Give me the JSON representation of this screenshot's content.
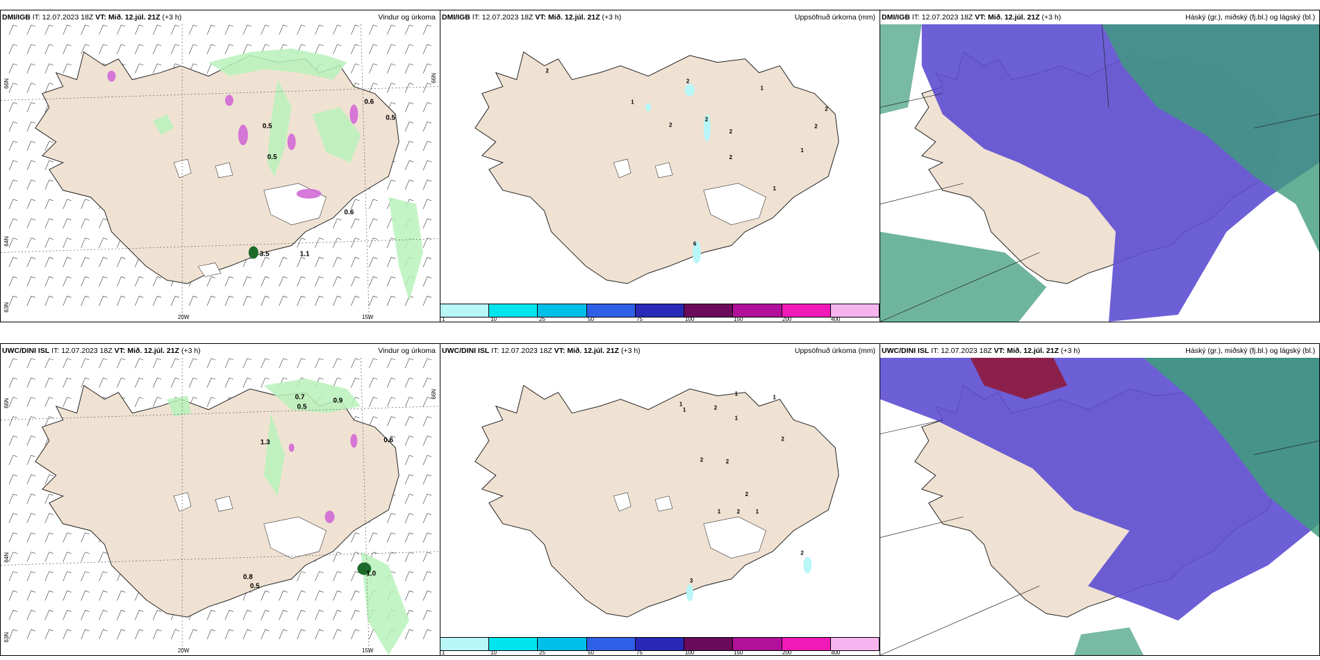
{
  "panels": [
    {
      "model": "DMI/IGB",
      "it_label": "IT:",
      "it": "12.07.2023 18Z",
      "vt_label": "VT:",
      "vt": "Mið. 12.júl. 21Z",
      "lead": "(+3 h)",
      "title": "Vindur og úrkoma"
    },
    {
      "model": "DMI/IGB",
      "it_label": "IT:",
      "it": "12.07.2023 18Z",
      "vt_label": "VT:",
      "vt": "Mið. 12.júl. 21Z",
      "lead": "(+3 h)",
      "title": "Uppsöfnuð úrkoma (mm)"
    },
    {
      "model": "DMI/IGB",
      "it_label": "IT:",
      "it": "12.07.2023 18Z",
      "vt_label": "VT:",
      "vt": "Mið. 12.júl. 21Z",
      "lead": "(+3 h)",
      "title": "Háský (gr.), miðský (fj.bl.) og lágský (bl.)"
    },
    {
      "model": "UWC/DINI ISL",
      "it_label": "IT:",
      "it": "12.07.2023 18Z",
      "vt_label": "VT:",
      "vt": "Mið. 12.júl. 21Z",
      "lead": "(+3 h)",
      "title": "Vindur og úrkoma"
    },
    {
      "model": "UWC/DINI ISL",
      "it_label": "IT:",
      "it": "12.07.2023 18Z",
      "vt_label": "VT:",
      "vt": "Mið. 12.júl. 21Z",
      "lead": "(+3 h)",
      "title": "Uppsöfnuð úrkoma (mm)"
    },
    {
      "model": "UWC/DINI ISL",
      "it_label": "IT:",
      "it": "12.07.2023 18Z",
      "vt_label": "VT:",
      "vt": "Mið. 12.júl. 21Z",
      "lead": "(+3 h)",
      "title": "Háský (gr.), miðský (fj.bl.) og lágský (bl.)"
    }
  ],
  "axes": {
    "lat66": "66N",
    "lat64": "64N",
    "lat63": "63N",
    "lon20": "20W",
    "lon15": "15W"
  },
  "colorbar": {
    "labels": [
      "1",
      "10",
      "25",
      "50",
      "75",
      "100",
      "150",
      "200",
      "400"
    ],
    "colors": [
      "#b8f6f8",
      "#00e5ee",
      "#00bfe8",
      "#2f5fe6",
      "#2929b8",
      "#6b0a5a",
      "#b0109a",
      "#f01ab8",
      "#f6b4ee"
    ]
  },
  "wind_labels": {
    "top": [
      "0.5",
      "0.5",
      "0.6",
      "0.6",
      "1.1",
      "3.5",
      "0.5"
    ],
    "bottom": [
      "0.7",
      "0.5",
      "0.9",
      "0.6",
      "1.3",
      "0.8",
      "0.5",
      "1.0"
    ]
  },
  "precip_labels": {
    "top": [
      "2",
      "1",
      "2",
      "2",
      "2",
      "2",
      "1",
      "1",
      "2",
      "6",
      "2",
      "2",
      "1"
    ],
    "bottom": [
      "1",
      "1",
      "2",
      "1",
      "1",
      "1",
      "2",
      "2",
      "2",
      "1",
      "2",
      "2",
      "1",
      "3",
      "2"
    ]
  },
  "colors": {
    "land": "#f0e2d3",
    "precip_light": "#b9f2bb",
    "cloud_high": "#3f9c7c",
    "cloud_mid": "#5d4ed2",
    "cloud_low": "#8e1b3c"
  }
}
